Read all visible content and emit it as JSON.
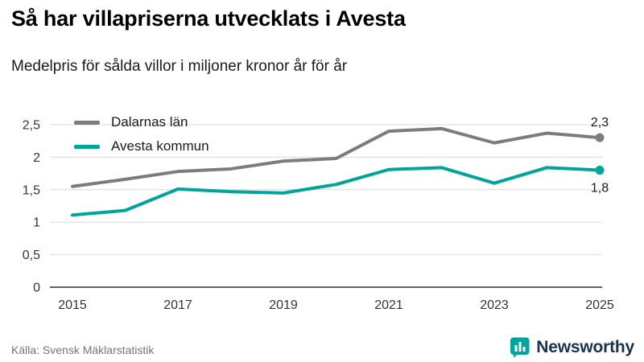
{
  "header": {
    "title": "Så har villapriserna utvecklats i Avesta",
    "subtitle": "Medelpris för sålda villor i miljoner kronor år för år"
  },
  "chart_data": {
    "type": "line",
    "x": [
      2015,
      2016,
      2017,
      2018,
      2019,
      2020,
      2021,
      2022,
      2023,
      2024,
      2025
    ],
    "series": [
      {
        "name": "Dalarnas län",
        "color": "#7c7c7c",
        "values": [
          1.55,
          1.66,
          1.78,
          1.82,
          1.94,
          1.98,
          2.4,
          2.44,
          2.22,
          2.37,
          2.3
        ],
        "end_label": "2,3",
        "label_position": "above"
      },
      {
        "name": "Avesta kommun",
        "color": "#00a49a",
        "values": [
          1.11,
          1.18,
          1.51,
          1.47,
          1.45,
          1.58,
          1.81,
          1.84,
          1.6,
          1.84,
          1.8
        ],
        "end_label": "1,8",
        "label_position": "below"
      }
    ],
    "ylim": [
      0,
      2.5
    ],
    "yticks": [
      0,
      0.5,
      1,
      1.5,
      2,
      2.5
    ],
    "ytick_labels": [
      "0",
      "0,5",
      "1",
      "1,5",
      "2",
      "2,5"
    ],
    "xticks": [
      2015,
      2017,
      2019,
      2021,
      2023,
      2025
    ],
    "xtick_labels": [
      "2015",
      "2017",
      "2019",
      "2021",
      "2023",
      "2025"
    ],
    "grid": true,
    "legend_position": "top-left"
  },
  "footer": {
    "source": "Källa: Svensk Mäklarstatistik",
    "brand": "Newsworthy",
    "brand_color": "#00a49a"
  }
}
